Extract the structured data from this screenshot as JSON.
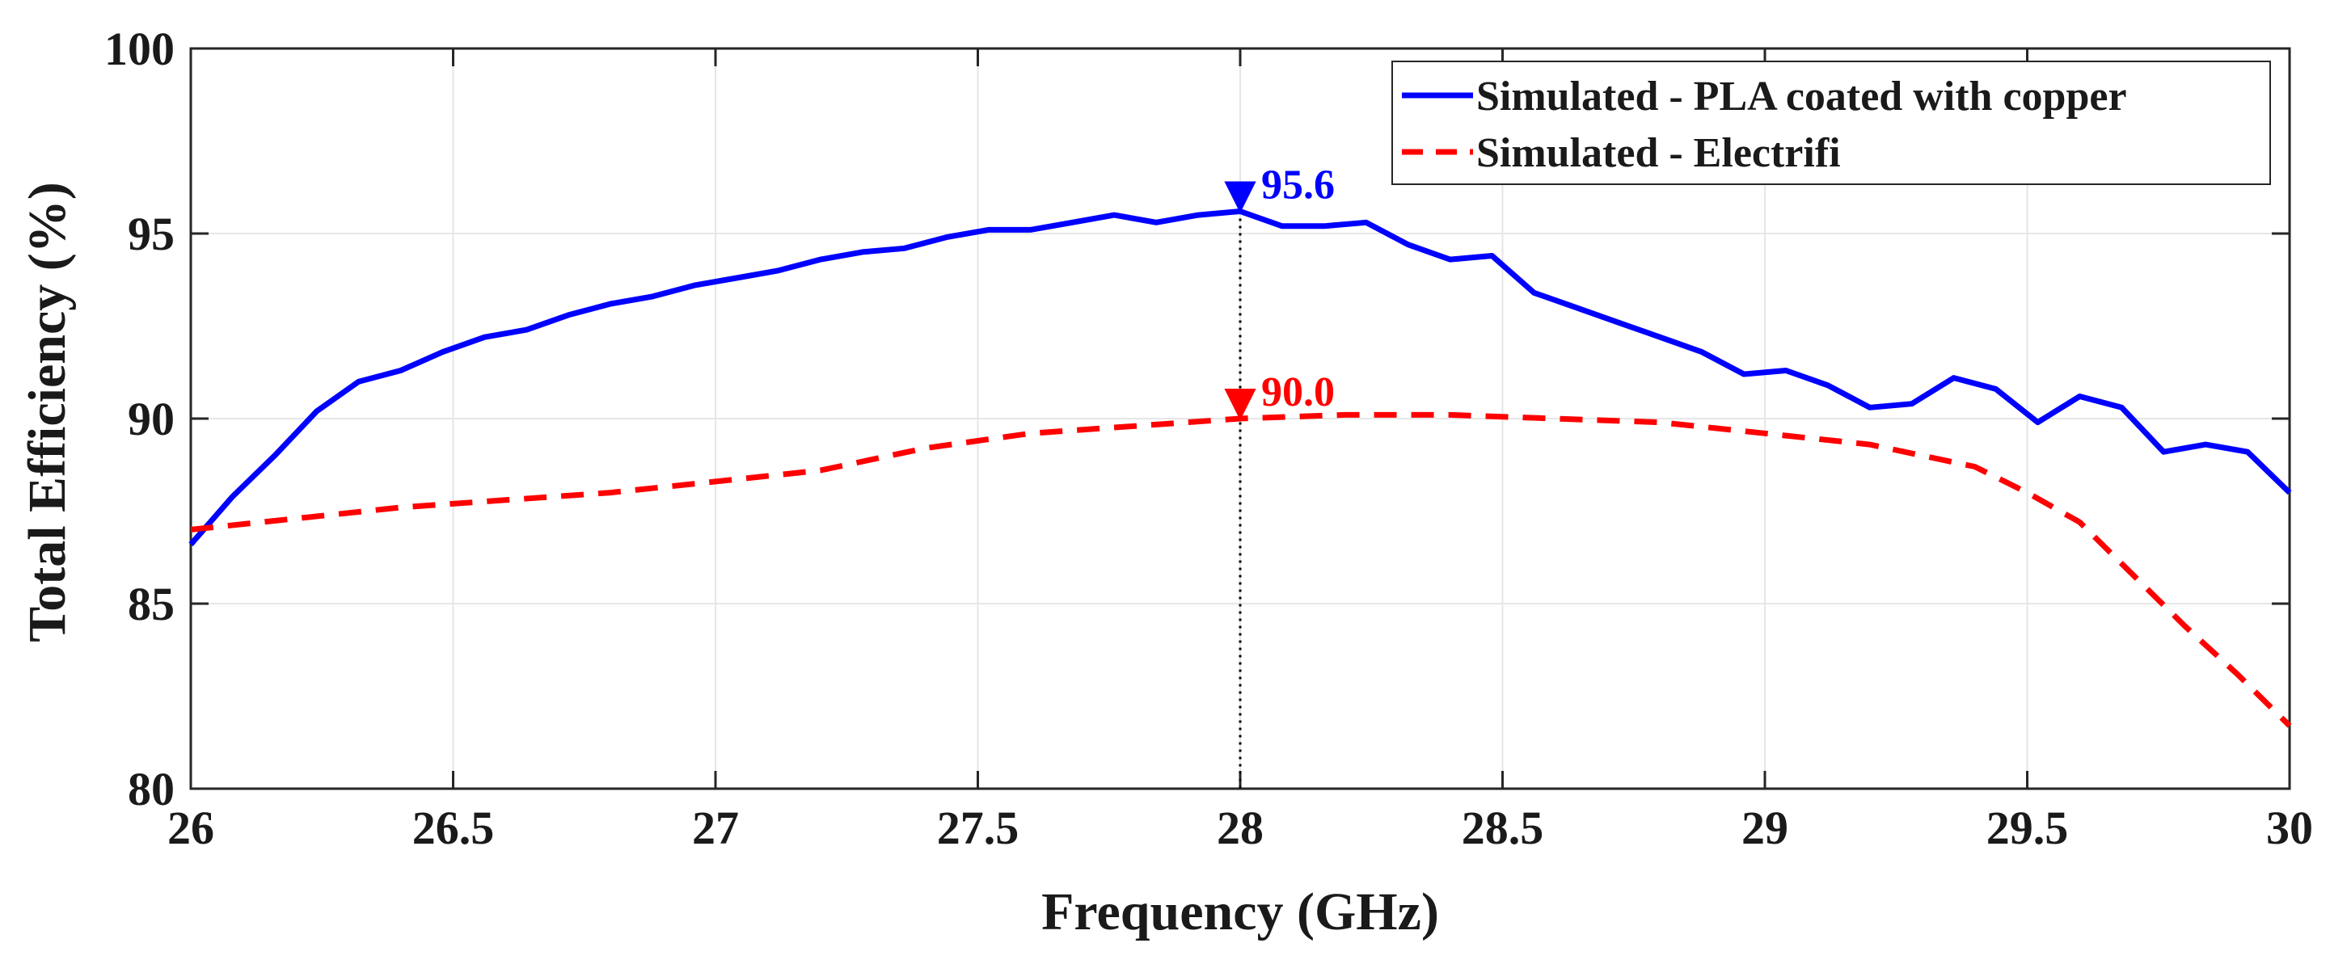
{
  "chart_data": {
    "type": "line",
    "title": "",
    "xlabel": "Frequency (GHz)",
    "ylabel": "Total Efficiency (%)",
    "xlim": [
      26,
      30
    ],
    "ylim": [
      80,
      100
    ],
    "xticks": [
      26,
      26.5,
      27,
      27.5,
      28,
      28.5,
      29,
      29.5,
      30
    ],
    "xtick_labels": [
      "26",
      "26.5",
      "27",
      "27.5",
      "28",
      "28.5",
      "29",
      "29.5",
      "30"
    ],
    "yticks": [
      80,
      85,
      90,
      95,
      100
    ],
    "ytick_labels": [
      "80",
      "85",
      "90",
      "95",
      "100"
    ],
    "grid": true,
    "legend_position": "top-right",
    "series": [
      {
        "name": "Simulated - PLA coated with copper",
        "color": "#0000ff",
        "style": "solid",
        "x": [
          26,
          26.08,
          26.16,
          26.24,
          26.32,
          26.4,
          26.48,
          26.56,
          26.64,
          26.72,
          26.8,
          26.88,
          26.96,
          27.04,
          27.12,
          27.2,
          27.28,
          27.36,
          27.44,
          27.52,
          27.6,
          27.68,
          27.76,
          27.84,
          27.92,
          28,
          28.08,
          28.16,
          28.24,
          28.32,
          28.4,
          28.48,
          28.56,
          28.64,
          28.72,
          28.8,
          28.88,
          28.96,
          29.04,
          29.12,
          29.2,
          29.28,
          29.36,
          29.44,
          29.52,
          29.6,
          29.68,
          29.76,
          29.84,
          29.92,
          30
        ],
        "y": [
          86.6,
          87.9,
          89.0,
          90.2,
          91.0,
          91.3,
          91.8,
          92.2,
          92.4,
          92.8,
          93.1,
          93.3,
          93.6,
          93.8,
          94.0,
          94.3,
          94.5,
          94.6,
          94.9,
          95.1,
          95.1,
          95.3,
          95.5,
          95.3,
          95.5,
          95.6,
          95.2,
          95.2,
          95.3,
          94.7,
          94.3,
          94.4,
          93.4,
          93.0,
          92.6,
          92.2,
          91.8,
          91.2,
          91.3,
          90.9,
          90.3,
          90.4,
          91.1,
          90.8,
          89.9,
          90.6,
          90.3,
          89.1,
          89.3,
          89.1,
          88.0
        ]
      },
      {
        "name": "Simulated - Electrifi",
        "color": "#ff0000",
        "style": "dashed",
        "x": [
          26,
          26.2,
          26.4,
          26.6,
          26.8,
          27,
          27.2,
          27.4,
          27.6,
          27.8,
          28,
          28.2,
          28.4,
          28.6,
          28.8,
          29,
          29.2,
          29.4,
          29.5,
          29.6,
          29.7,
          29.8,
          29.9,
          30
        ],
        "y": [
          87.0,
          87.3,
          87.6,
          87.8,
          88.0,
          88.3,
          88.6,
          89.2,
          89.6,
          89.8,
          90.0,
          90.1,
          90.1,
          90.0,
          89.9,
          89.6,
          89.3,
          88.7,
          88.0,
          87.2,
          85.8,
          84.4,
          83.1,
          81.7
        ]
      }
    ],
    "annotations": [
      {
        "label": "95.6",
        "x": 28,
        "y": 95.6,
        "color": "#0000ff"
      },
      {
        "label": "90.0",
        "x": 28,
        "y": 90.0,
        "color": "#ff0000"
      }
    ],
    "reference_line": {
      "x": 28,
      "style": "dotted",
      "color": "#000000"
    }
  }
}
